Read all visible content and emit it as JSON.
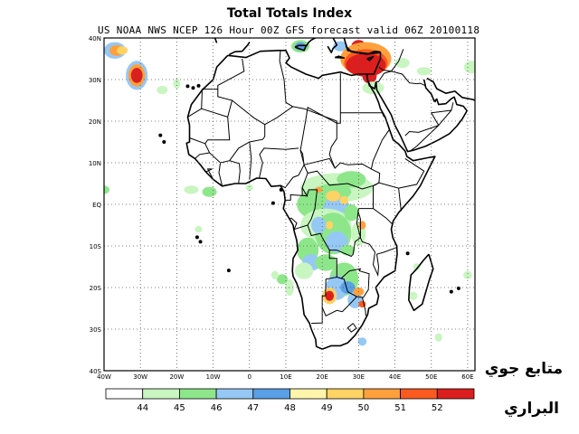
{
  "map": {
    "title": "Total Totals Index",
    "subtitle": "US NOAA NWS NCEP 126 Hour 00Z GFS forecast valid 06Z 20100118",
    "lat_labels": [
      "40N",
      "30N",
      "20N",
      "10N",
      "EQ",
      "10S",
      "20S",
      "30S",
      "40S"
    ],
    "lon_labels": [
      "40W",
      "30W",
      "20W",
      "10W",
      "0",
      "10E",
      "20E",
      "30E",
      "40E",
      "50E",
      "60E"
    ],
    "extent": {
      "lon_min": -40,
      "lon_max": 62,
      "lat_min": -40,
      "lat_max": 40
    }
  },
  "colorbar": {
    "labels": [
      "44",
      "45",
      "46",
      "47",
      "48",
      "49",
      "50",
      "51",
      "52"
    ],
    "colors": [
      "#ffffff",
      "#c8f5c0",
      "#8ee68a",
      "#96c8f5",
      "#5aa0e6",
      "#fff5aa",
      "#ffd264",
      "#ffa03c",
      "#fa5a1e",
      "#dc1e1e"
    ]
  },
  "watermark": {
    "line1": "متابع جوي",
    "line2": "البراري"
  }
}
